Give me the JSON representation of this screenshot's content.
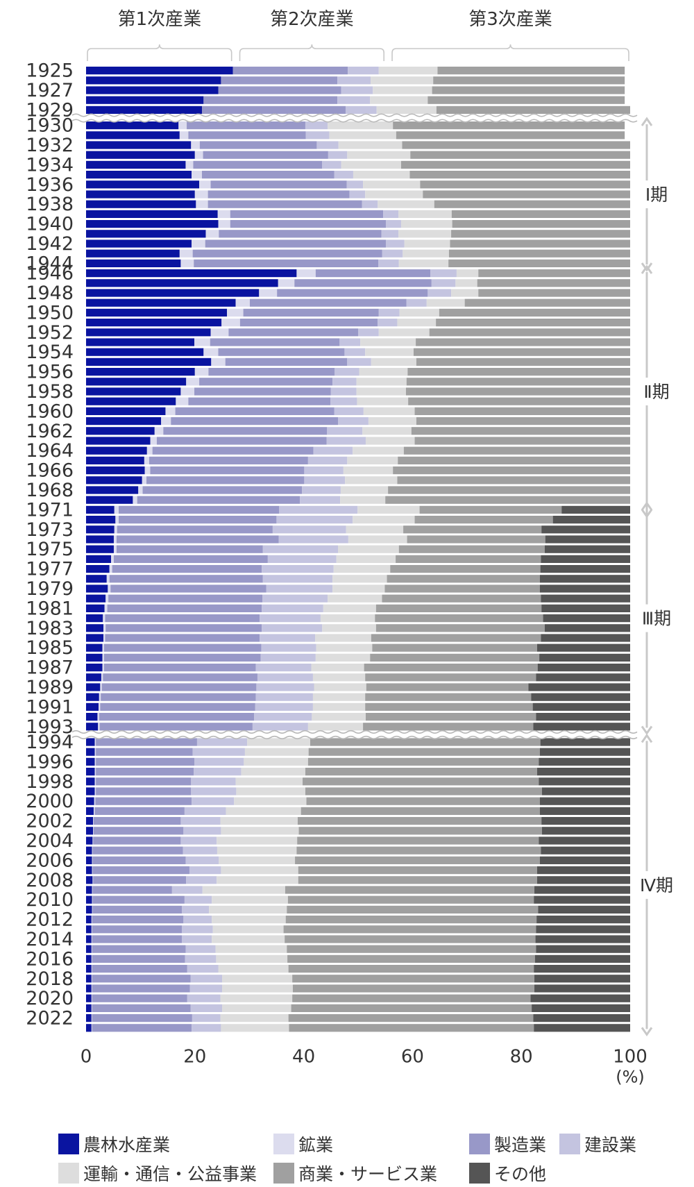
{
  "chart_data": {
    "type": "bar",
    "orientation": "horizontal",
    "stacked": true,
    "xlim": [
      0,
      100
    ],
    "x_ticks": [
      "0",
      "20",
      "40",
      "60",
      "80",
      "100"
    ],
    "x_unit": "(%)",
    "grid": false,
    "legend_position": "bottom",
    "sector_groups": [
      {
        "label": "第1次産業",
        "range": [
          0,
          27
        ]
      },
      {
        "label": "第2次産業",
        "range": [
          28,
          55
        ]
      },
      {
        "label": "第3次産業",
        "range": [
          56,
          100
        ]
      }
    ],
    "periods": [
      {
        "label": "Ⅰ期",
        "from": "1930",
        "to": "1944"
      },
      {
        "label": "Ⅱ期",
        "from": "1946",
        "to": "1971"
      },
      {
        "label": "Ⅲ期",
        "from": "1971",
        "to": "1993"
      },
      {
        "label": "Ⅳ期",
        "from": "1994",
        "to": "2023"
      }
    ],
    "breaks_after": [
      "1929",
      "1945",
      "1970",
      "1993"
    ],
    "year_labels": [
      "1925",
      "1927",
      "1929",
      "1930",
      "1932",
      "1934",
      "1936",
      "1938",
      "1940",
      "1942",
      "1944",
      "1946",
      "1948",
      "1950",
      "1952",
      "1954",
      "1956",
      "1958",
      "1960",
      "1962",
      "1964",
      "1966",
      "1968",
      "1971",
      "1973",
      "1975",
      "1977",
      "1979",
      "1981",
      "1983",
      "1985",
      "1987",
      "1989",
      "1991",
      "1993",
      "1994",
      "1996",
      "1998",
      "2000",
      "2002",
      "2004",
      "2006",
      "2008",
      "2010",
      "2012",
      "2014",
      "2016",
      "2018",
      "2020",
      "2022"
    ],
    "series_names": [
      "農林水産業",
      "鉱業",
      "製造業",
      "建設業",
      "運輸・通信・公益事業",
      "商業・サービス業",
      "その他"
    ],
    "colors": [
      "#0a14a0",
      "#dcdcee",
      "#9898c8",
      "#c4c4e0",
      "#dddddd",
      "#a0a0a0",
      "#555555"
    ],
    "rows": [
      {
        "year": "1925",
        "values": [
          27.0,
          0.0,
          21.1,
          5.7,
          10.8,
          34.4,
          0.0
        ]
      },
      {
        "year": "1926",
        "values": [
          24.8,
          0.0,
          21.4,
          6.1,
          11.5,
          35.2,
          0.0
        ]
      },
      {
        "year": "1927",
        "values": [
          24.3,
          0.0,
          22.6,
          5.8,
          10.9,
          35.4,
          0.0
        ]
      },
      {
        "year": "1928",
        "values": [
          21.6,
          0.0,
          24.6,
          6.0,
          10.6,
          36.2,
          0.0
        ]
      },
      {
        "year": "1929",
        "values": [
          21.3,
          0.0,
          26.4,
          5.7,
          11.0,
          35.6,
          0.0
        ]
      },
      {
        "year": "1930",
        "values": [
          17.0,
          1.5,
          21.8,
          4.1,
          12.0,
          42.6,
          0.0
        ]
      },
      {
        "year": "1931",
        "values": [
          17.2,
          1.6,
          21.6,
          4.3,
          12.3,
          42.0,
          0.0
        ]
      },
      {
        "year": "1932",
        "values": [
          19.3,
          1.6,
          21.5,
          4.0,
          11.7,
          41.9,
          0.0
        ]
      },
      {
        "year": "1933",
        "values": [
          20.0,
          1.5,
          23.0,
          3.5,
          11.6,
          40.4,
          0.0
        ]
      },
      {
        "year": "1934",
        "values": [
          18.3,
          1.4,
          23.7,
          3.5,
          11.0,
          42.1,
          0.0
        ]
      },
      {
        "year": "1935",
        "values": [
          19.4,
          1.9,
          24.3,
          3.5,
          10.4,
          40.5,
          0.0
        ]
      },
      {
        "year": "1936",
        "values": [
          20.8,
          2.1,
          25.0,
          3.0,
          10.5,
          38.6,
          0.0
        ]
      },
      {
        "year": "1937",
        "values": [
          20.0,
          2.4,
          26.0,
          2.9,
          10.6,
          38.1,
          0.0
        ]
      },
      {
        "year": "1938",
        "values": [
          20.2,
          2.2,
          28.3,
          2.9,
          10.4,
          36.0,
          0.0
        ]
      },
      {
        "year": "1939",
        "values": [
          24.2,
          2.3,
          28.1,
          2.8,
          9.8,
          32.8,
          0.0
        ]
      },
      {
        "year": "1940",
        "values": [
          24.3,
          2.2,
          28.6,
          2.8,
          9.4,
          32.7,
          0.0
        ]
      },
      {
        "year": "1941",
        "values": [
          22.0,
          2.4,
          29.9,
          3.1,
          9.7,
          32.9,
          0.0
        ]
      },
      {
        "year": "1942",
        "values": [
          19.4,
          2.5,
          33.2,
          3.4,
          8.4,
          33.1,
          0.0
        ]
      },
      {
        "year": "1943",
        "values": [
          17.2,
          2.4,
          34.8,
          3.8,
          8.5,
          33.3,
          0.0
        ]
      },
      {
        "year": "1944",
        "values": [
          17.4,
          2.4,
          33.9,
          3.8,
          9.1,
          33.4,
          0.0
        ]
      },
      {
        "year": "1946",
        "values": [
          38.7,
          3.5,
          21.1,
          4.8,
          4.0,
          27.9,
          0.0
        ]
      },
      {
        "year": "1947",
        "values": [
          35.3,
          3.0,
          25.2,
          4.4,
          4.0,
          28.1,
          0.0
        ]
      },
      {
        "year": "1948",
        "values": [
          31.8,
          3.3,
          27.7,
          4.3,
          5.0,
          27.9,
          0.0
        ]
      },
      {
        "year": "1949",
        "values": [
          27.5,
          2.6,
          28.8,
          3.7,
          7.0,
          30.4,
          0.0
        ]
      },
      {
        "year": "1950",
        "values": [
          25.9,
          3.0,
          24.9,
          3.8,
          7.3,
          35.1,
          0.0
        ]
      },
      {
        "year": "1951",
        "values": [
          24.9,
          3.4,
          25.3,
          3.6,
          7.1,
          35.7,
          0.0
        ]
      },
      {
        "year": "1952",
        "values": [
          22.9,
          3.3,
          23.8,
          3.8,
          9.3,
          36.9,
          0.0
        ]
      },
      {
        "year": "1953",
        "values": [
          19.9,
          2.9,
          23.8,
          3.8,
          10.2,
          39.4,
          0.0
        ]
      },
      {
        "year": "1954",
        "values": [
          21.6,
          2.7,
          23.2,
          3.8,
          8.9,
          39.8,
          0.0
        ]
      },
      {
        "year": "1955",
        "values": [
          23.0,
          2.6,
          22.4,
          4.4,
          8.3,
          39.3,
          0.0
        ]
      },
      {
        "year": "1956",
        "values": [
          20.0,
          2.5,
          23.2,
          4.5,
          8.9,
          40.9,
          0.0
        ]
      },
      {
        "year": "1957",
        "values": [
          18.4,
          2.4,
          24.5,
          4.4,
          9.2,
          41.1,
          0.0
        ]
      },
      {
        "year": "1958",
        "values": [
          17.4,
          2.5,
          25.1,
          4.7,
          9.1,
          41.2,
          0.0
        ]
      },
      {
        "year": "1959",
        "values": [
          16.5,
          2.3,
          26.1,
          4.9,
          9.4,
          40.8,
          0.0
        ]
      },
      {
        "year": "1960",
        "values": [
          14.6,
          1.8,
          29.2,
          5.4,
          9.4,
          39.6,
          0.0
        ]
      },
      {
        "year": "1961",
        "values": [
          13.8,
          1.8,
          30.7,
          5.6,
          8.8,
          39.3,
          0.0
        ]
      },
      {
        "year": "1962",
        "values": [
          12.6,
          1.6,
          30.1,
          6.5,
          9.0,
          40.2,
          0.0
        ]
      },
      {
        "year": "1963",
        "values": [
          11.8,
          1.2,
          31.2,
          7.2,
          9.0,
          39.6,
          0.0
        ]
      },
      {
        "year": "1964",
        "values": [
          11.2,
          1.0,
          29.6,
          7.2,
          9.4,
          41.6,
          0.0
        ]
      },
      {
        "year": "1965",
        "values": [
          10.7,
          0.9,
          29.2,
          7.2,
          9.3,
          42.7,
          0.0
        ]
      },
      {
        "year": "1966",
        "values": [
          10.8,
          1.0,
          28.3,
          7.2,
          9.1,
          43.6,
          0.0
        ]
      },
      {
        "year": "1967",
        "values": [
          10.3,
          0.8,
          29.0,
          7.5,
          9.6,
          42.8,
          0.0
        ]
      },
      {
        "year": "1968",
        "values": [
          9.6,
          0.8,
          29.3,
          7.1,
          8.7,
          44.5,
          0.0
        ]
      },
      {
        "year": "1969",
        "values": [
          8.6,
          0.8,
          29.9,
          7.4,
          8.3,
          45.0,
          0.0
        ]
      },
      {
        "year": "1971",
        "values": [
          5.2,
          0.8,
          29.5,
          14.4,
          11.4,
          26.1,
          12.6
        ]
      },
      {
        "year": "1972",
        "values": [
          5.4,
          0.6,
          29.0,
          14.0,
          11.4,
          25.4,
          14.2
        ]
      },
      {
        "year": "1973",
        "values": [
          5.2,
          0.5,
          28.6,
          13.5,
          10.5,
          25.4,
          16.3
        ]
      },
      {
        "year": "1974",
        "values": [
          5.1,
          0.5,
          29.8,
          12.8,
          10.8,
          25.4,
          15.6
        ]
      },
      {
        "year": "1975",
        "values": [
          5.1,
          0.5,
          26.9,
          13.8,
          11.2,
          26.8,
          15.7
        ]
      },
      {
        "year": "1976",
        "values": [
          4.6,
          0.5,
          28.3,
          12.6,
          10.9,
          26.7,
          16.4
        ]
      },
      {
        "year": "1977",
        "values": [
          4.3,
          0.5,
          27.5,
          13.2,
          10.4,
          27.6,
          16.5
        ]
      },
      {
        "year": "1978",
        "values": [
          3.8,
          0.5,
          28.2,
          12.8,
          10.0,
          28.1,
          16.6
        ]
      },
      {
        "year": "1979",
        "values": [
          4.0,
          0.5,
          28.6,
          12.2,
          9.6,
          28.5,
          16.6
        ]
      },
      {
        "year": "1980",
        "values": [
          3.6,
          0.5,
          28.3,
          12.0,
          10.0,
          29.2,
          16.4
        ]
      },
      {
        "year": "1981",
        "values": [
          3.4,
          0.5,
          28.4,
          11.3,
          9.7,
          30.4,
          16.3
        ]
      },
      {
        "year": "1982",
        "values": [
          3.1,
          0.4,
          28.4,
          11.2,
          10.0,
          30.9,
          16.0
        ]
      },
      {
        "year": "1983",
        "values": [
          3.2,
          0.4,
          28.7,
          11.1,
          9.9,
          31.0,
          15.7
        ]
      },
      {
        "year": "1984",
        "values": [
          3.2,
          0.3,
          28.4,
          10.2,
          10.3,
          31.2,
          16.4
        ]
      },
      {
        "year": "1985",
        "values": [
          3.0,
          0.3,
          28.9,
          10.1,
          10.3,
          30.3,
          17.1
        ]
      },
      {
        "year": "1986",
        "values": [
          3.0,
          0.3,
          28.8,
          10.1,
          10.0,
          31.1,
          16.7
        ]
      },
      {
        "year": "1987",
        "values": [
          3.0,
          0.3,
          27.9,
          10.2,
          9.7,
          31.9,
          17.0
        ]
      },
      {
        "year": "1988",
        "values": [
          2.8,
          0.3,
          28.4,
          10.2,
          9.6,
          31.4,
          17.3
        ]
      },
      {
        "year": "1989",
        "values": [
          2.6,
          0.3,
          28.4,
          10.6,
          9.6,
          29.8,
          18.7
        ]
      },
      {
        "year": "1990",
        "values": [
          2.4,
          0.3,
          28.5,
          10.5,
          9.6,
          30.5,
          18.2
        ]
      },
      {
        "year": "1991",
        "values": [
          2.3,
          0.3,
          28.5,
          10.6,
          9.6,
          30.8,
          17.9
        ]
      },
      {
        "year": "1992",
        "values": [
          2.1,
          0.3,
          28.5,
          10.6,
          9.9,
          31.3,
          17.3
        ]
      },
      {
        "year": "1993",
        "values": [
          2.2,
          0.3,
          28.1,
          10.2,
          10.1,
          31.3,
          17.8
        ]
      },
      {
        "year": "1994",
        "values": [
          1.6,
          0.2,
          18.6,
          9.2,
          11.6,
          42.3,
          16.5
        ]
      },
      {
        "year": "1995",
        "values": [
          1.6,
          0.2,
          17.8,
          9.6,
          11.7,
          42.5,
          16.6
        ]
      },
      {
        "year": "1996",
        "values": [
          1.6,
          0.2,
          18.1,
          9.1,
          11.8,
          42.4,
          16.8
        ]
      },
      {
        "year": "1997",
        "values": [
          1.6,
          0.2,
          18.0,
          8.7,
          11.8,
          42.6,
          17.1
        ]
      },
      {
        "year": "1998",
        "values": [
          1.6,
          0.2,
          17.5,
          8.2,
          12.3,
          43.4,
          16.8
        ]
      },
      {
        "year": "1999",
        "values": [
          1.6,
          0.2,
          17.5,
          8.3,
          12.7,
          43.5,
          16.2
        ]
      },
      {
        "year": "2000",
        "values": [
          1.5,
          0.2,
          17.7,
          7.8,
          13.3,
          42.9,
          16.6
        ]
      },
      {
        "year": "2001",
        "values": [
          1.4,
          0.2,
          16.5,
          7.6,
          13.8,
          43.9,
          16.6
        ]
      },
      {
        "year": "2002",
        "values": [
          1.3,
          0.1,
          16.0,
          7.3,
          14.2,
          44.8,
          16.3
        ]
      },
      {
        "year": "2003",
        "values": [
          1.3,
          0.1,
          16.5,
          6.9,
          14.3,
          44.7,
          16.2
        ]
      },
      {
        "year": "2004",
        "values": [
          1.2,
          0.1,
          16.1,
          6.6,
          14.8,
          44.4,
          16.8
        ]
      },
      {
        "year": "2005",
        "values": [
          1.1,
          0.1,
          16.6,
          6.3,
          14.6,
          44.9,
          16.4
        ]
      },
      {
        "year": "2006",
        "values": [
          1.1,
          0.1,
          17.1,
          6.1,
          14.0,
          45.0,
          16.6
        ]
      },
      {
        "year": "2007",
        "values": [
          1.1,
          0.1,
          17.8,
          5.8,
          14.2,
          43.9,
          17.1
        ]
      },
      {
        "year": "2008",
        "values": [
          1.2,
          0.1,
          17.1,
          5.6,
          15.0,
          43.9,
          17.1
        ]
      },
      {
        "year": "2009",
        "values": [
          1.1,
          0.1,
          14.6,
          5.6,
          15.2,
          45.8,
          17.6
        ]
      },
      {
        "year": "2010",
        "values": [
          1.1,
          0.1,
          16.9,
          5.0,
          14.0,
          45.2,
          17.7
        ]
      },
      {
        "year": "2011",
        "values": [
          1.1,
          0.1,
          16.4,
          5.0,
          14.3,
          46.2,
          16.9
        ]
      },
      {
        "year": "2012",
        "values": [
          1.0,
          0.1,
          16.8,
          5.2,
          13.6,
          46.1,
          17.2
        ]
      },
      {
        "year": "2013",
        "values": [
          1.0,
          0.1,
          16.5,
          5.7,
          13.0,
          46.4,
          17.3
        ]
      },
      {
        "year": "2014",
        "values": [
          1.0,
          0.1,
          16.5,
          5.5,
          13.4,
          46.1,
          17.4
        ]
      },
      {
        "year": "2015",
        "values": [
          1.0,
          0.1,
          17.2,
          5.5,
          13.1,
          45.8,
          17.3
        ]
      },
      {
        "year": "2016",
        "values": [
          1.0,
          0.1,
          17.1,
          5.7,
          13.1,
          45.5,
          17.5
        ]
      },
      {
        "year": "2017",
        "values": [
          1.0,
          0.1,
          17.5,
          5.7,
          12.9,
          45.1,
          17.7
        ]
      },
      {
        "year": "2018",
        "values": [
          1.0,
          0.1,
          18.1,
          5.8,
          12.9,
          44.5,
          17.6
        ]
      },
      {
        "year": "2019",
        "values": [
          1.0,
          0.1,
          18.0,
          5.9,
          13.0,
          44.4,
          17.6
        ]
      },
      {
        "year": "2020",
        "values": [
          1.0,
          0.1,
          17.5,
          6.1,
          13.2,
          43.8,
          18.3
        ]
      },
      {
        "year": "2021",
        "values": [
          1.0,
          0.1,
          18.1,
          5.8,
          12.7,
          44.2,
          18.1
        ]
      },
      {
        "year": "2022",
        "values": [
          1.0,
          0.1,
          18.4,
          5.2,
          12.5,
          45.0,
          17.8
        ]
      },
      {
        "year": "2023",
        "values": [
          1.0,
          0.1,
          18.3,
          5.4,
          12.5,
          45.0,
          17.7
        ]
      }
    ]
  }
}
